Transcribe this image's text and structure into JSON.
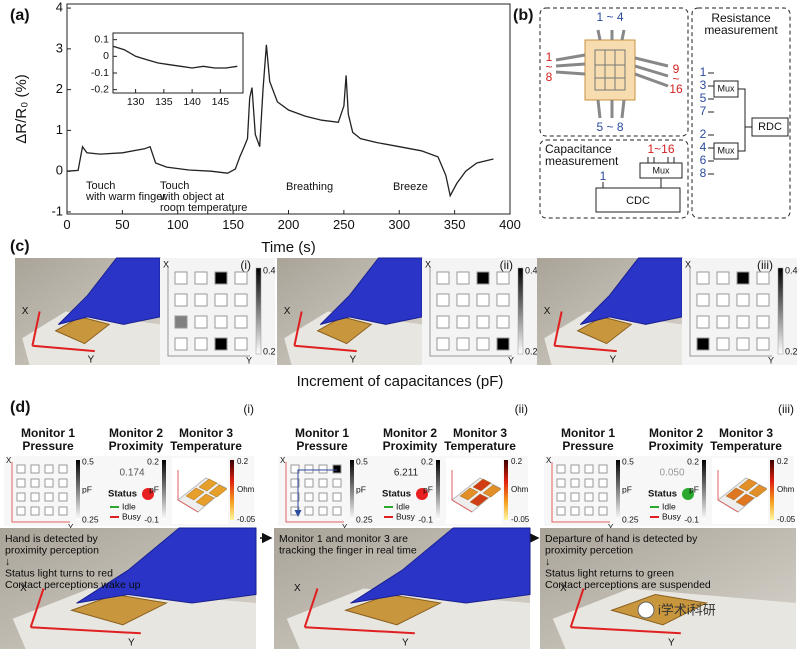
{
  "panel_labels": [
    "(a)",
    "(b)",
    "(c)",
    "(d)"
  ],
  "chart_data": [
    {
      "type": "line",
      "xlabel": "Time (s)",
      "ylabel": "ΔR/R₀ (%)",
      "x": [
        0,
        10,
        14,
        18,
        30,
        50,
        70,
        75,
        80,
        90,
        110,
        130,
        145,
        152,
        156,
        160,
        163,
        165,
        167,
        170,
        174,
        177,
        180,
        183,
        190,
        200,
        215,
        230,
        245,
        250,
        252,
        254,
        258,
        265,
        280,
        300,
        320,
        335,
        342,
        346,
        352,
        360,
        370,
        385
      ],
      "values": [
        0,
        0.02,
        0.6,
        0.45,
        0.42,
        0.45,
        0.55,
        0.6,
        0.2,
        0.1,
        0.03,
        0,
        -0.05,
        0.05,
        0.35,
        0.6,
        0.8,
        1.8,
        2.05,
        0.9,
        0.6,
        2.0,
        3.1,
        2.2,
        1.7,
        1.5,
        1.35,
        1.25,
        1.2,
        1.6,
        2.35,
        1.4,
        0.95,
        0.8,
        0.7,
        0.6,
        0.5,
        0.35,
        -0.1,
        -0.6,
        -0.3,
        0.0,
        0.2,
        0.3
      ],
      "color": "#222222",
      "xlim": [
        0,
        400
      ],
      "ylim": [
        -1.05,
        4.1
      ],
      "xticks": [
        0,
        50,
        100,
        150,
        200,
        250,
        300,
        350,
        400
      ],
      "yticks": [
        -1,
        0,
        1,
        2,
        3,
        4
      ],
      "annotations": [
        [
          "Touch",
          "with warm finger"
        ],
        [
          "Touch",
          "with object at",
          "room temperature"
        ],
        [
          "Breathing"
        ],
        [
          "Breeze"
        ]
      ]
    },
    {
      "type": "line",
      "x": [
        126,
        128,
        130,
        132,
        134,
        136,
        138,
        140,
        142,
        144,
        146,
        148
      ],
      "values": [
        0.06,
        0.04,
        0.0,
        -0.02,
        -0.04,
        -0.05,
        -0.06,
        -0.07,
        -0.06,
        -0.07,
        -0.07,
        -0.06
      ],
      "color": "#222222",
      "xlim": [
        126,
        149
      ],
      "ylim": [
        -0.22,
        0.14
      ],
      "xticks": [
        130,
        135,
        140,
        145
      ],
      "yticks": [
        -0.2,
        -0.1,
        0,
        0.1
      ]
    }
  ],
  "diagram": {
    "chip_top": "1 ~ 4",
    "chip_left": [
      "1",
      "~",
      "8"
    ],
    "chip_right": [
      "9",
      "~",
      "16"
    ],
    "chip_bottom": "5 ~ 8",
    "capacitance_title": [
      "Capacitance",
      "measurement"
    ],
    "capacitance_channels": "1~16",
    "capacitance_mux": "Mux",
    "capacitance_input": "1",
    "cdc": "CDC",
    "resistance_title": [
      "Resistance",
      "measurement"
    ],
    "resistance_groups": [
      [
        "1",
        "3",
        "5",
        "7"
      ],
      [
        "2",
        "4",
        "6",
        "8"
      ]
    ],
    "resistance_mux": [
      "Mux",
      "Mux"
    ],
    "rdc": "RDC"
  },
  "capacitance": {
    "caption": "Increment of capacitances (pF)",
    "x_label": "X",
    "y_label": "Y",
    "clim": [
      0.2,
      0.4
    ],
    "panels": [
      {
        "label": "(i)",
        "cells": [
          [
            0.2,
            0.2,
            0.4,
            0.2
          ],
          [
            0.2,
            0.2,
            0.2,
            0.2
          ],
          [
            0.3,
            0.2,
            0.2,
            0.2
          ],
          [
            0.2,
            0.2,
            0.4,
            0.2
          ]
        ]
      },
      {
        "label": "(ii)",
        "cells": [
          [
            0.2,
            0.2,
            0.4,
            0.2
          ],
          [
            0.2,
            0.2,
            0.2,
            0.2
          ],
          [
            0.2,
            0.2,
            0.2,
            0.2
          ],
          [
            0.2,
            0.2,
            0.2,
            0.4
          ]
        ]
      },
      {
        "label": "(iii)",
        "cells": [
          [
            0.2,
            0.2,
            0.4,
            0.2
          ],
          [
            0.2,
            0.2,
            0.2,
            0.2
          ],
          [
            0.2,
            0.2,
            0.2,
            0.2
          ],
          [
            0.4,
            0.2,
            0.2,
            0.2
          ]
        ]
      }
    ]
  },
  "monitoring": {
    "monitors": [
      [
        "Monitor 1",
        "Pressure"
      ],
      [
        "Monitor 2",
        "Proximity"
      ],
      [
        "Monitor 3",
        "Temperature"
      ]
    ],
    "units": [
      "pF",
      "pF",
      "Ohm"
    ],
    "pressure_clim": [
      0.25,
      0.5
    ],
    "proximity_clim": [
      -0.1,
      0.2
    ],
    "temperature_clim": [
      -0.05,
      0.2
    ],
    "status_label": "Status",
    "legend": [
      {
        "name": "Idle",
        "color": "#2aa830"
      },
      {
        "name": "Busy",
        "color": "#e02020"
      }
    ],
    "x_label": "X",
    "y_label": "Y",
    "states": [
      {
        "label": "(i)",
        "pressure_cells": [
          [
            0.25,
            0.25,
            0.25,
            0.25
          ],
          [
            0.25,
            0.25,
            0.25,
            0.25
          ],
          [
            0.25,
            0.25,
            0.25,
            0.25
          ],
          [
            0.25,
            0.25,
            0.25,
            0.25
          ]
        ],
        "proximity": "0.174",
        "proximity_color": "#555555",
        "status_color": "#e82020",
        "temperature_pads": [
          0.03,
          0.03,
          0.03,
          0.03
        ],
        "description": [
          "Hand is detected by",
          "proximity perception",
          "↓",
          "Status light turns to red",
          "Contact perceptions wake up"
        ]
      },
      {
        "label": "(ii)",
        "pressure_cells": [
          [
            0.25,
            0.25,
            0.25,
            0.5
          ],
          [
            0.25,
            0.25,
            0.25,
            0.25
          ],
          [
            0.25,
            0.25,
            0.25,
            0.25
          ],
          [
            0.25,
            0.25,
            0.25,
            0.25
          ]
        ],
        "proximity": "6.211",
        "proximity_color": "#222222",
        "status_color": "#e82020",
        "temperature_pads": [
          0.05,
          0.15,
          0.15,
          0.05
        ],
        "description": [
          "Monitor 1 and monitor 3 are",
          "tracking the finger in real time"
        ]
      },
      {
        "label": "(iii)",
        "pressure_cells": [
          [
            0.25,
            0.25,
            0.25,
            0.25
          ],
          [
            0.25,
            0.25,
            0.25,
            0.25
          ],
          [
            0.25,
            0.25,
            0.25,
            0.25
          ],
          [
            0.25,
            0.25,
            0.25,
            0.25
          ]
        ],
        "proximity": "0.050",
        "proximity_color": "#999999",
        "status_color": "#2aa830",
        "temperature_pads": [
          0.08,
          0.05,
          0.08,
          0.05
        ],
        "description": [
          "Departure of hand is detected by",
          "proximity percetion",
          "↓",
          "Status light returns to green",
          "Contact perceptions are suspended"
        ]
      }
    ]
  },
  "watermark": "i学术i科研"
}
